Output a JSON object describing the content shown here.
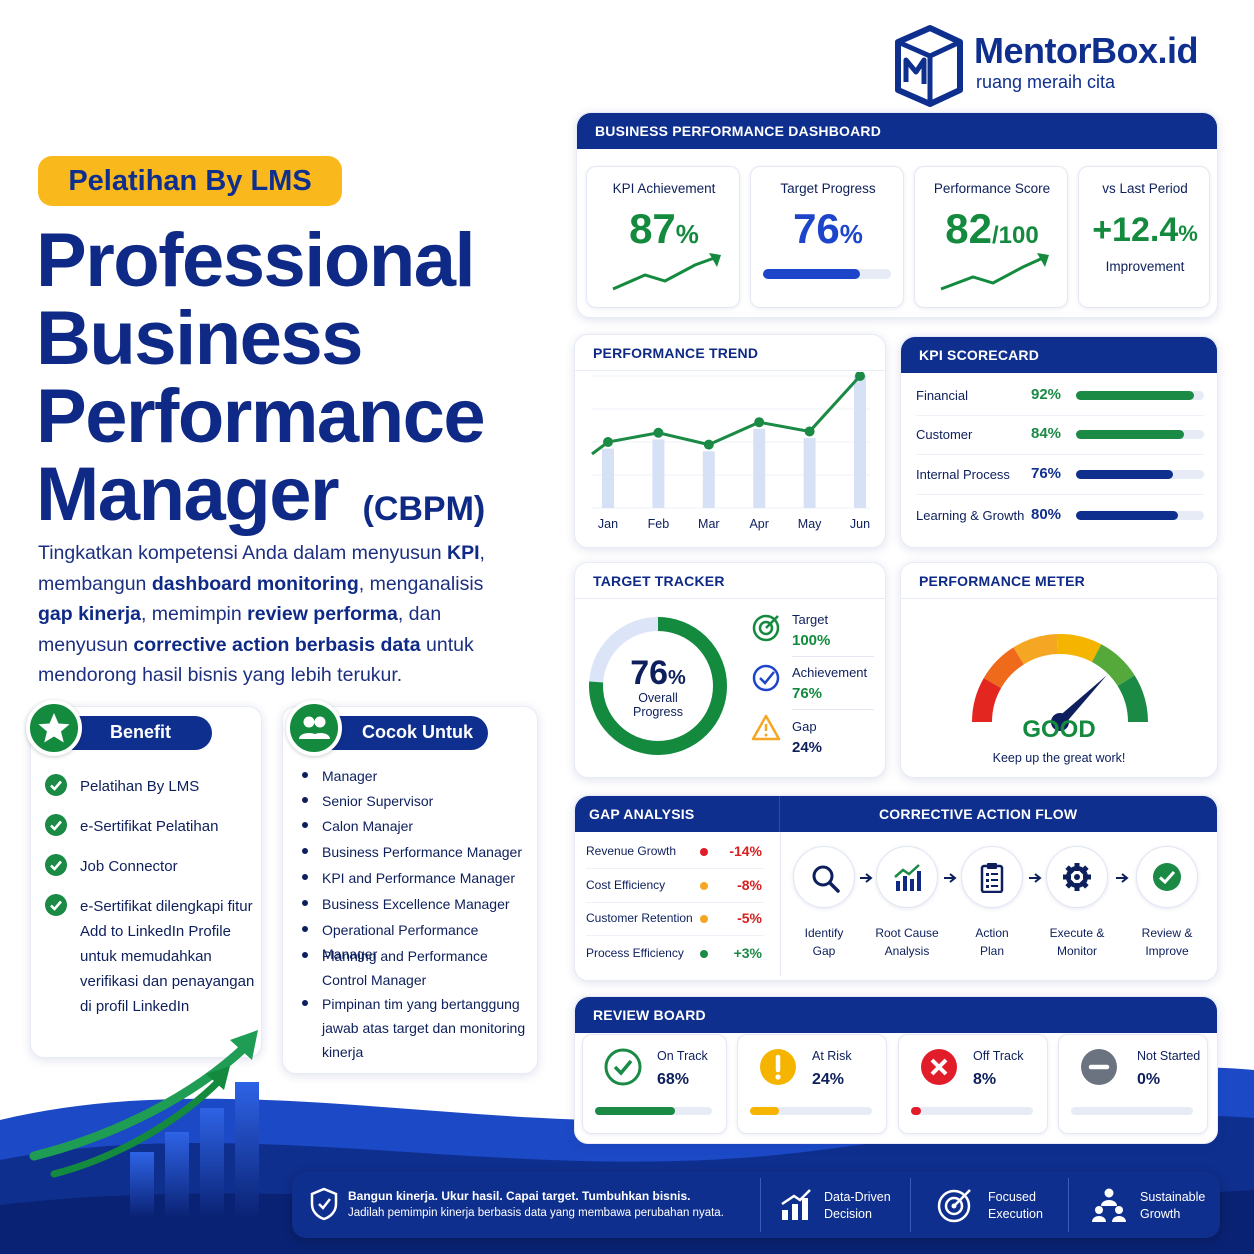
{
  "brand": {
    "name": "MentorBox.id",
    "tagline": "ruang meraih cita"
  },
  "hero": {
    "badge": "Pelatihan By LMS",
    "title_lines": [
      "Professional",
      "Business",
      "Performance",
      "Manager"
    ],
    "abbr": "(CBPM)",
    "desc": [
      {
        "t": "Tingkatkan kompetensi Anda dalam menyusun ",
        "b": false
      },
      {
        "t": "KPI",
        "b": true
      },
      {
        "t": ", membangun ",
        "b": false
      },
      {
        "t": "dashboard monitoring",
        "b": true
      },
      {
        "t": ", menganalisis ",
        "b": false
      },
      {
        "t": "gap kinerja",
        "b": true
      },
      {
        "t": ", memimpin ",
        "b": false
      },
      {
        "t": "review performa",
        "b": true
      },
      {
        "t": ", dan menyusun ",
        "b": false
      },
      {
        "t": "corrective action berbasis data",
        "b": true
      },
      {
        "t": " untuk mendorong hasil bisnis yang lebih terukur.",
        "b": false
      }
    ]
  },
  "benefit": {
    "title": "Benefit",
    "items": [
      "Pelatihan By LMS",
      "e-Sertifikat Pelatihan",
      "Job Connector",
      "e-Sertifikat dilengkapi fitur Add to LinkedIn Profile untuk memudahkan verifikasi dan penayangan di profil LinkedIn"
    ]
  },
  "cocok": {
    "title": "Cocok Untuk",
    "items": [
      "Manager",
      "Senior Supervisor",
      "Calon Manajer",
      "Business Performance Manager",
      "KPI and Performance Manager",
      "Business Excellence Manager",
      "Operational Performance Manager",
      "Planning and Performance Control Manager",
      "Pimpinan tim yang bertanggung jawab atas target dan monitoring kinerja"
    ]
  },
  "dashboard": {
    "title": "BUSINESS PERFORMANCE DASHBOARD",
    "kpi": {
      "label": "KPI Achievement",
      "value": "87",
      "unit": "%"
    },
    "target": {
      "label": "Target Progress",
      "value": "76",
      "unit": "%",
      "progress": 76
    },
    "score": {
      "label": "Performance Score",
      "value": "82",
      "unit": "/100"
    },
    "vs": {
      "label": "vs Last Period",
      "value": "+12.4",
      "unit": "%",
      "sub": "Improvement"
    }
  },
  "trend": {
    "title": "PERFORMANCE TREND"
  },
  "chart_data": {
    "type": "line",
    "title": "PERFORMANCE TREND",
    "categories": [
      "Jan",
      "Feb",
      "Mar",
      "Apr",
      "May",
      "Jun"
    ],
    "series": [
      {
        "values": [
          50,
          57,
          48,
          65,
          58,
          100
        ]
      }
    ],
    "bars": [
      45,
      52,
      43,
      60,
      53,
      100
    ],
    "ylim": [
      0,
      100
    ],
    "grid": true
  },
  "scorecard": {
    "title": "KPI SCORECARD",
    "rows": [
      {
        "label": "Financial",
        "value": "92%",
        "pct": 92,
        "color": "#1a8a45"
      },
      {
        "label": "Customer",
        "value": "84%",
        "pct": 84,
        "color": "#1a8a45"
      },
      {
        "label": "Internal Process",
        "value": "76%",
        "pct": 76,
        "color": "#0f2f8f"
      },
      {
        "label": "Learning & Growth",
        "value": "80%",
        "pct": 80,
        "color": "#0f2f8f"
      }
    ]
  },
  "tracker": {
    "title": "TARGET TRACKER",
    "value": "76",
    "unit": "%",
    "label1": "Overall",
    "label2": "Progress",
    "progress": 76,
    "items": [
      {
        "label": "Target",
        "value": "100%"
      },
      {
        "label": "Achievement",
        "value": "76%"
      },
      {
        "label": "Gap",
        "value": "24%"
      }
    ]
  },
  "meter": {
    "title": "PERFORMANCE METER",
    "status": "GOOD",
    "msg": "Keep up the great work!",
    "level": 0.75
  },
  "gap": {
    "title": "GAP ANALYSIS",
    "rows": [
      {
        "label": "Revenue Growth",
        "value": "-14%",
        "color": "#e11d2a"
      },
      {
        "label": "Cost Efficiency",
        "value": "-8%",
        "color": "#f5a623"
      },
      {
        "label": "Customer Retention",
        "value": "-5%",
        "color": "#f5a623"
      },
      {
        "label": "Process Efficiency",
        "value": "+3%",
        "color": "#1a8a45"
      }
    ]
  },
  "flow": {
    "title": "CORRECTIVE ACTION FLOW",
    "steps": [
      {
        "l1": "Identify",
        "l2": "Gap",
        "icon": "magnifier-icon"
      },
      {
        "l1": "Root Cause",
        "l2": "Analysis",
        "icon": "chart-icon"
      },
      {
        "l1": "Action",
        "l2": "Plan",
        "icon": "clipboard-icon"
      },
      {
        "l1": "Execute &",
        "l2": "Monitor",
        "icon": "gear-icon"
      },
      {
        "l1": "Review &",
        "l2": "Improve",
        "icon": "check-icon"
      }
    ]
  },
  "review": {
    "title": "REVIEW BOARD",
    "items": [
      {
        "label": "On Track",
        "value": "68%",
        "pct": 68,
        "color": "#1a8a45"
      },
      {
        "label": "At Risk",
        "value": "24%",
        "pct": 24,
        "color": "#f5b400"
      },
      {
        "label": "Off Track",
        "value": "8%",
        "pct": 8,
        "color": "#e11d2a"
      },
      {
        "label": "Not Started",
        "value": "0%",
        "pct": 0,
        "color": "#6b7280"
      }
    ]
  },
  "footer": {
    "line1": "Bangun kinerja. Ukur hasil. Capai target. Tumbuhkan bisnis.",
    "line2": "Jadilah pemimpin kinerja berbasis data yang membawa perubahan nyata.",
    "features": [
      {
        "l1": "Data-Driven",
        "l2": "Decision"
      },
      {
        "l1": "Focused",
        "l2": "Execution"
      },
      {
        "l1": "Sustainable",
        "l2": "Growth"
      }
    ]
  }
}
